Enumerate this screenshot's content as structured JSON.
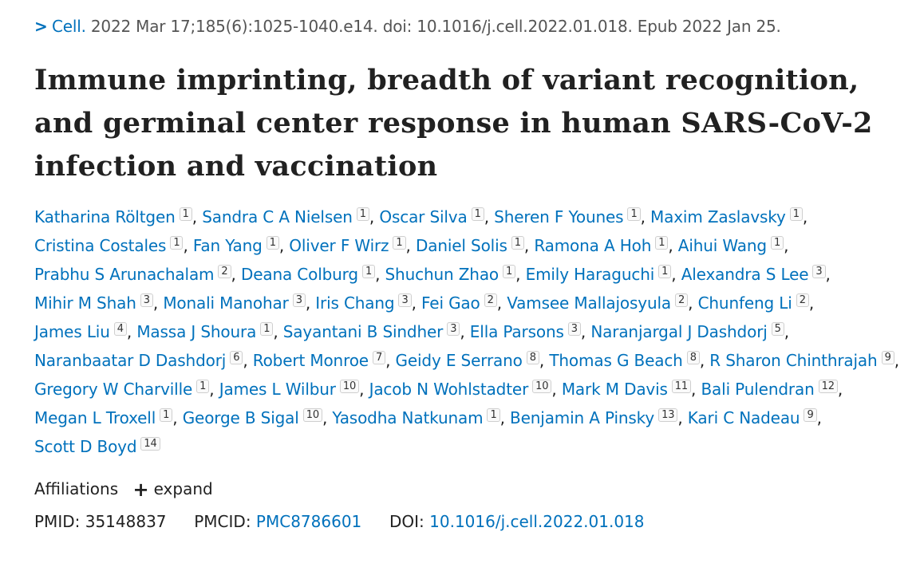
{
  "citation": {
    "journal": "Cell.",
    "details": " 2022 Mar 17;185(6):1025-1040.e14. doi: 10.1016/j.cell.2022.01.018. Epub 2022 Jan 25."
  },
  "title": "Immune imprinting, breadth of variant recognition, and germinal center response in human SARS-CoV-2 infection and vaccination",
  "authors": [
    {
      "name": "Katharina Röltgen",
      "aff": "1"
    },
    {
      "name": "Sandra C A Nielsen",
      "aff": "1"
    },
    {
      "name": "Oscar Silva",
      "aff": "1"
    },
    {
      "name": "Sheren F Younes",
      "aff": "1"
    },
    {
      "name": "Maxim Zaslavsky",
      "aff": "1"
    },
    {
      "name": "Cristina Costales",
      "aff": "1"
    },
    {
      "name": "Fan Yang",
      "aff": "1"
    },
    {
      "name": "Oliver F Wirz",
      "aff": "1"
    },
    {
      "name": "Daniel Solis",
      "aff": "1"
    },
    {
      "name": "Ramona A Hoh",
      "aff": "1"
    },
    {
      "name": "Aihui Wang",
      "aff": "1"
    },
    {
      "name": "Prabhu S Arunachalam",
      "aff": "2"
    },
    {
      "name": "Deana Colburg",
      "aff": "1"
    },
    {
      "name": "Shuchun Zhao",
      "aff": "1"
    },
    {
      "name": "Emily Haraguchi",
      "aff": "1"
    },
    {
      "name": "Alexandra S Lee",
      "aff": "3"
    },
    {
      "name": "Mihir M Shah",
      "aff": "3"
    },
    {
      "name": "Monali Manohar",
      "aff": "3"
    },
    {
      "name": "Iris Chang",
      "aff": "3"
    },
    {
      "name": "Fei Gao",
      "aff": "2"
    },
    {
      "name": "Vamsee Mallajosyula",
      "aff": "2"
    },
    {
      "name": "Chunfeng Li",
      "aff": "2"
    },
    {
      "name": "James Liu",
      "aff": "4"
    },
    {
      "name": "Massa J Shoura",
      "aff": "1"
    },
    {
      "name": "Sayantani B Sindher",
      "aff": "3"
    },
    {
      "name": "Ella Parsons",
      "aff": "3"
    },
    {
      "name": "Naranjargal J Dashdorj",
      "aff": "5"
    },
    {
      "name": "Naranbaatar D Dashdorj",
      "aff": "6"
    },
    {
      "name": "Robert Monroe",
      "aff": "7"
    },
    {
      "name": "Geidy E Serrano",
      "aff": "8"
    },
    {
      "name": "Thomas G Beach",
      "aff": "8"
    },
    {
      "name": "R Sharon Chinthrajah",
      "aff": "9"
    },
    {
      "name": "Gregory W Charville",
      "aff": "1"
    },
    {
      "name": "James L Wilbur",
      "aff": "10"
    },
    {
      "name": "Jacob N Wohlstadter",
      "aff": "10"
    },
    {
      "name": "Mark M Davis",
      "aff": "11"
    },
    {
      "name": "Bali Pulendran",
      "aff": "12"
    },
    {
      "name": "Megan L Troxell",
      "aff": "1"
    },
    {
      "name": "George B Sigal",
      "aff": "10"
    },
    {
      "name": "Yasodha Natkunam",
      "aff": "1"
    },
    {
      "name": "Benjamin A Pinsky",
      "aff": "13"
    },
    {
      "name": "Kari C Nadeau",
      "aff": "9"
    },
    {
      "name": "Scott D Boyd",
      "aff": "14"
    }
  ],
  "affiliations": {
    "label": "Affiliations",
    "expand_label": "expand"
  },
  "identifiers": {
    "pmid_label": "PMID:",
    "pmid": "35148837",
    "pmcid_label": "PMCID:",
    "pmcid": "PMC8786601",
    "doi_label": "DOI:",
    "doi": "10.1016/j.cell.2022.01.018"
  },
  "colors": {
    "link": "#0071bc",
    "text": "#212121"
  }
}
